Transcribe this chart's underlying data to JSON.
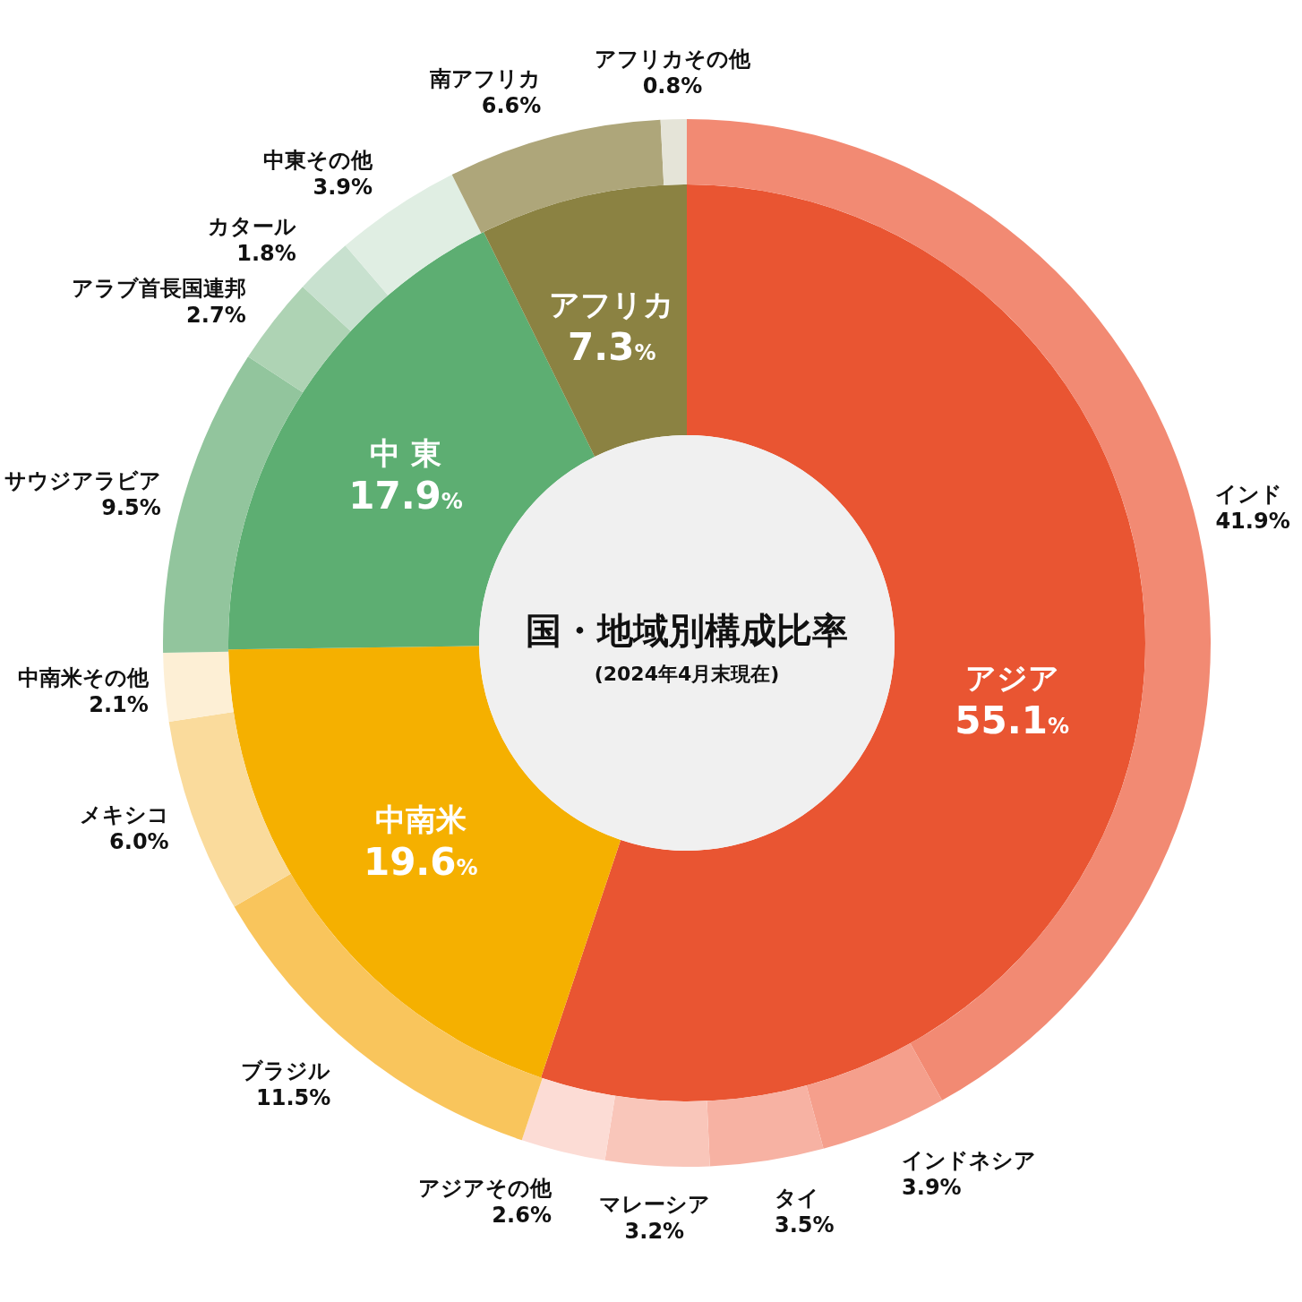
{
  "chart_data": [
    {
      "type": "donut",
      "title": "国・地域別構成比率",
      "subtitle": "(2024年4月末現在)",
      "categories": [
        "アジア",
        "中南米",
        "中 東",
        "アフリカ"
      ],
      "values": [
        55.1,
        19.6,
        17.9,
        7.3
      ],
      "colors": [
        "#e95532",
        "#f5b000",
        "#5dae72",
        "#8b8242"
      ],
      "value_labels": [
        "55.1%",
        "19.6%",
        "17.9%",
        "7.3%"
      ]
    },
    {
      "type": "donut",
      "categories": [
        "インド",
        "インドネシア",
        "タイ",
        "マレーシア",
        "アジアその他",
        "ブラジル",
        "メキシコ",
        "中南米その他",
        "サウジアラビア",
        "アラブ首長国連邦",
        "カタール",
        "中東その他",
        "南アフリカ",
        "アフリカその他"
      ],
      "values": [
        41.9,
        3.9,
        3.5,
        3.2,
        2.6,
        11.5,
        6.0,
        2.1,
        9.5,
        2.7,
        1.8,
        3.9,
        6.6,
        0.8
      ],
      "colors": [
        "#f28a73",
        "#f59f8c",
        "#f7b2a3",
        "#f9c6ba",
        "#fcdcd5",
        "#f9c55c",
        "#fadb9c",
        "#fdefd5",
        "#92c59d",
        "#aed3b4",
        "#c8e1cf",
        "#e0eee3",
        "#aea67a",
        "#e5e4d8"
      ],
      "value_labels": [
        "41.9%",
        "3.9%",
        "3.5%",
        "3.2%",
        "2.6%",
        "11.5%",
        "6.0%",
        "2.1%",
        "9.5%",
        "2.7%",
        "1.8%",
        "3.9%",
        "6.6%",
        "0.8%"
      ]
    }
  ]
}
